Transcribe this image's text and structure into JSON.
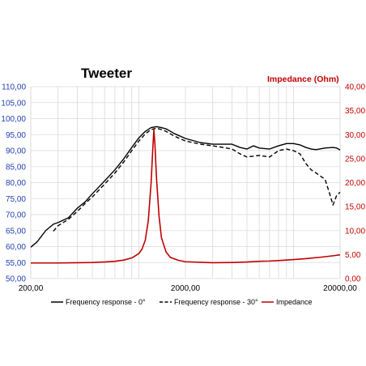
{
  "chart_data": {
    "type": "line",
    "title": "Tweeter",
    "y2label": "Impedance (Ohm)",
    "x_scale": "log",
    "xlim": [
      200,
      20000
    ],
    "ylim": [
      50,
      110
    ],
    "y2lim": [
      0,
      40
    ],
    "grid": true,
    "legend_position": "bottom",
    "x_ticks": [
      "200,00",
      "2000,00",
      "20000,00"
    ],
    "y_ticks": [
      "50,00",
      "55,00",
      "60,00",
      "65,00",
      "70,00",
      "75,00",
      "80,00",
      "85,00",
      "90,00",
      "95,00",
      "100,00",
      "105,00",
      "110,00"
    ],
    "y2_ticks": [
      "0,00",
      "5,00",
      "10,00",
      "15,00",
      "20,00",
      "25,00",
      "30,00",
      "35,00",
      "40,00"
    ],
    "series": [
      {
        "name": "Frequency response - 0°",
        "axis": "left",
        "color": "#000000",
        "dash": "solid",
        "points": [
          [
            200,
            59.8
          ],
          [
            220,
            61.5
          ],
          [
            250,
            65
          ],
          [
            280,
            67
          ],
          [
            300,
            67.5
          ],
          [
            350,
            69
          ],
          [
            400,
            72
          ],
          [
            450,
            74
          ],
          [
            500,
            76.5
          ],
          [
            600,
            80.5
          ],
          [
            700,
            84
          ],
          [
            800,
            87.5
          ],
          [
            900,
            91
          ],
          [
            1000,
            94
          ],
          [
            1100,
            96
          ],
          [
            1200,
            97.2
          ],
          [
            1300,
            97.5
          ],
          [
            1400,
            97.2
          ],
          [
            1500,
            96.8
          ],
          [
            1700,
            95.3
          ],
          [
            2000,
            93.8
          ],
          [
            2500,
            92.5
          ],
          [
            3000,
            92
          ],
          [
            3500,
            92
          ],
          [
            4000,
            92
          ],
          [
            4500,
            91
          ],
          [
            5000,
            90.5
          ],
          [
            5500,
            91.5
          ],
          [
            6000,
            90.8
          ],
          [
            7000,
            90.5
          ],
          [
            8000,
            91.5
          ],
          [
            9000,
            92.2
          ],
          [
            10000,
            92.2
          ],
          [
            11000,
            91.8
          ],
          [
            12000,
            91
          ],
          [
            13000,
            90.5
          ],
          [
            14000,
            90.3
          ],
          [
            16000,
            90.8
          ],
          [
            18000,
            91
          ],
          [
            19000,
            90.8
          ],
          [
            20000,
            90.2
          ]
        ]
      },
      {
        "name": "Frequency response - 30°",
        "axis": "left",
        "color": "#000000",
        "dash": "dashed",
        "points": [
          [
            280,
            64.8
          ],
          [
            300,
            66.5
          ],
          [
            350,
            68.5
          ],
          [
            400,
            71
          ],
          [
            450,
            73.5
          ],
          [
            500,
            75.5
          ],
          [
            600,
            79.5
          ],
          [
            700,
            83
          ],
          [
            800,
            86.5
          ],
          [
            900,
            90
          ],
          [
            1000,
            93
          ],
          [
            1100,
            95.2
          ],
          [
            1200,
            96.6
          ],
          [
            1300,
            97
          ],
          [
            1400,
            96.6
          ],
          [
            1500,
            96
          ],
          [
            1700,
            94.5
          ],
          [
            2000,
            93
          ],
          [
            2500,
            92
          ],
          [
            3000,
            91.5
          ],
          [
            3500,
            91
          ],
          [
            4000,
            90.5
          ],
          [
            4500,
            89
          ],
          [
            5000,
            88
          ],
          [
            6000,
            88.5
          ],
          [
            7000,
            88
          ],
          [
            8000,
            90
          ],
          [
            9000,
            90.5
          ],
          [
            10000,
            90
          ],
          [
            11000,
            89
          ],
          [
            12000,
            86
          ],
          [
            13000,
            84
          ],
          [
            14000,
            83
          ],
          [
            16000,
            81
          ],
          [
            17000,
            77
          ],
          [
            18000,
            73
          ],
          [
            19000,
            76
          ],
          [
            20000,
            77
          ]
        ]
      },
      {
        "name": "Impedance",
        "axis": "right",
        "color": "#c00000",
        "dash": "solid",
        "points": [
          [
            200,
            3.25
          ],
          [
            300,
            3.25
          ],
          [
            400,
            3.3
          ],
          [
            500,
            3.35
          ],
          [
            600,
            3.45
          ],
          [
            700,
            3.6
          ],
          [
            800,
            3.85
          ],
          [
            900,
            4.3
          ],
          [
            1000,
            5.2
          ],
          [
            1050,
            6.2
          ],
          [
            1100,
            8
          ],
          [
            1150,
            12
          ],
          [
            1200,
            20
          ],
          [
            1230,
            27
          ],
          [
            1250,
            31
          ],
          [
            1270,
            28
          ],
          [
            1300,
            21
          ],
          [
            1350,
            13
          ],
          [
            1400,
            8.5
          ],
          [
            1500,
            5.5
          ],
          [
            1600,
            4.4
          ],
          [
            1800,
            3.8
          ],
          [
            2000,
            3.5
          ],
          [
            3000,
            3.3
          ],
          [
            4000,
            3.35
          ],
          [
            5000,
            3.45
          ],
          [
            6000,
            3.6
          ],
          [
            7000,
            3.65
          ],
          [
            8000,
            3.75
          ],
          [
            10000,
            3.95
          ],
          [
            12000,
            4.15
          ],
          [
            15000,
            4.45
          ],
          [
            18000,
            4.75
          ],
          [
            20000,
            4.95
          ]
        ]
      }
    ]
  }
}
